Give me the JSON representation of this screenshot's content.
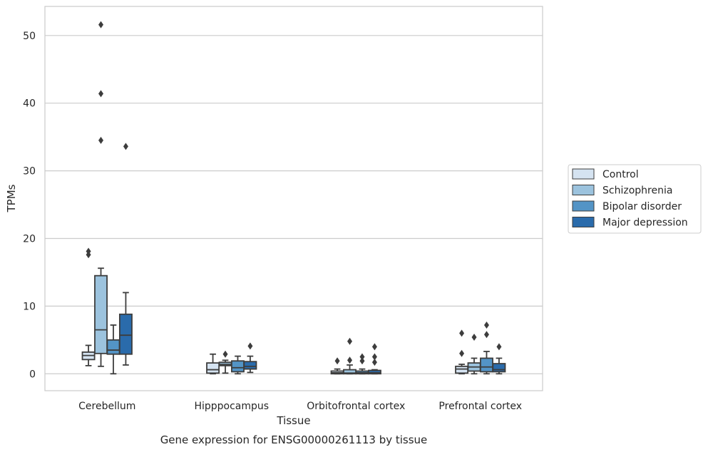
{
  "chart_data": {
    "type": "box",
    "xlabel": "Tissue",
    "ylabel": "TPMs",
    "caption": "Gene expression for ENSG00000261113 by tissue",
    "ylim": [
      -2.5,
      54.3
    ],
    "yticks": [
      0,
      10,
      20,
      30,
      40,
      50
    ],
    "grid": "horizontal",
    "legend_position": "right",
    "categories": [
      "Cerebellum",
      "Hipppocampus",
      "Orbitofrontal cortex",
      "Prefrontal cortex"
    ],
    "series": [
      {
        "name": "Control",
        "color": "#d5e3f1",
        "boxes": [
          {
            "whislo": 1.2,
            "q1": 2.1,
            "median": 2.7,
            "q3": 3.2,
            "whishi": 4.2,
            "fliers": [
              17.6,
              18.1
            ]
          },
          {
            "whislo": 0.0,
            "q1": 0.1,
            "median": 0.6,
            "q3": 1.6,
            "whishi": 2.9,
            "fliers": []
          },
          {
            "whislo": 0.0,
            "q1": 0.0,
            "median": 0.15,
            "q3": 0.4,
            "whishi": 0.7,
            "fliers": [
              1.9
            ]
          },
          {
            "whislo": 0.0,
            "q1": 0.1,
            "median": 0.7,
            "q3": 1.1,
            "whishi": 1.4,
            "fliers": [
              3.0,
              6.0
            ]
          }
        ]
      },
      {
        "name": "Schizophrenia",
        "color": "#9cc3de",
        "boxes": [
          {
            "whislo": 1.1,
            "q1": 3.0,
            "median": 6.5,
            "q3": 14.5,
            "whishi": 15.6,
            "fliers": [
              34.5,
              41.4,
              51.6
            ]
          },
          {
            "whislo": 0.1,
            "q1": 1.2,
            "median": 1.4,
            "q3": 1.7,
            "whishi": 2.0,
            "fliers": [
              2.9
            ]
          },
          {
            "whislo": 0.0,
            "q1": 0.0,
            "median": 0.1,
            "q3": 0.6,
            "whishi": 1.3,
            "fliers": [
              2.0,
              4.8
            ]
          },
          {
            "whislo": 0.0,
            "q1": 0.4,
            "median": 1.0,
            "q3": 1.6,
            "whishi": 2.3,
            "fliers": [
              5.4
            ]
          }
        ]
      },
      {
        "name": "Bipolar disorder",
        "color": "#5394c6",
        "boxes": [
          {
            "whislo": 0.0,
            "q1": 2.9,
            "median": 3.5,
            "q3": 5.0,
            "whishi": 7.2,
            "fliers": []
          },
          {
            "whislo": 0.0,
            "q1": 0.3,
            "median": 0.9,
            "q3": 1.9,
            "whishi": 2.6,
            "fliers": []
          },
          {
            "whislo": 0.0,
            "q1": 0.0,
            "median": 0.15,
            "q3": 0.4,
            "whishi": 0.7,
            "fliers": [
              1.9,
              2.5
            ]
          },
          {
            "whislo": 0.0,
            "q1": 0.3,
            "median": 1.0,
            "q3": 2.3,
            "whishi": 3.3,
            "fliers": [
              5.8,
              7.2
            ]
          }
        ]
      },
      {
        "name": "Major depression",
        "color": "#2a6bab",
        "boxes": [
          {
            "whislo": 1.3,
            "q1": 2.9,
            "median": 5.7,
            "q3": 8.8,
            "whishi": 12.0,
            "fliers": [
              33.6
            ]
          },
          {
            "whislo": 0.2,
            "q1": 0.7,
            "median": 1.1,
            "q3": 1.8,
            "whishi": 2.6,
            "fliers": [
              4.1
            ]
          },
          {
            "whislo": 0.0,
            "q1": 0.0,
            "median": 0.15,
            "q3": 0.5,
            "whishi": 0.6,
            "fliers": [
              1.7,
              2.5,
              4.0
            ]
          },
          {
            "whislo": 0.0,
            "q1": 0.3,
            "median": 0.6,
            "q3": 1.5,
            "whishi": 2.3,
            "fliers": [
              4.0
            ]
          }
        ]
      }
    ]
  }
}
